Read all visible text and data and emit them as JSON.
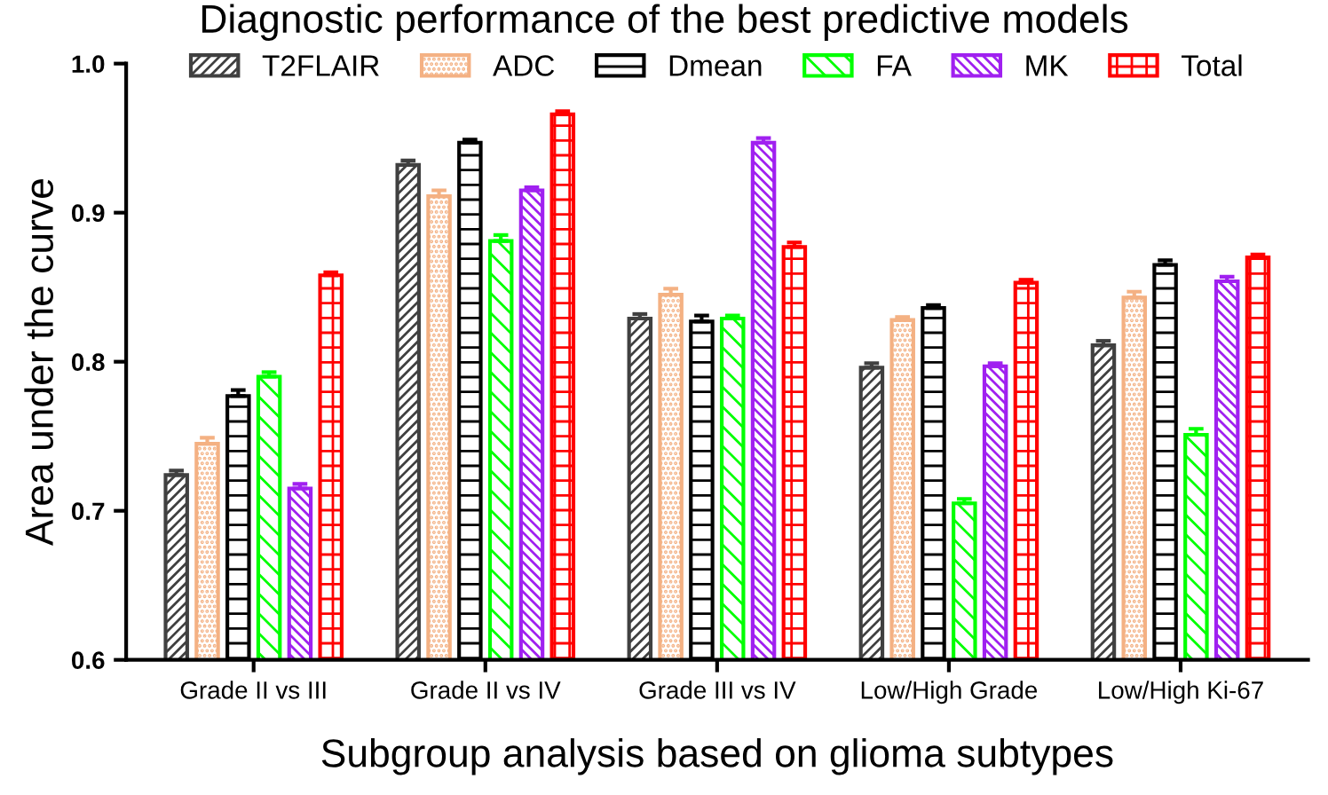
{
  "chart_data": {
    "type": "bar",
    "title": "Diagnostic performance of the best predictive models",
    "xlabel": "Subgroup analysis based on glioma subtypes",
    "ylabel": "Area under the curve",
    "categories": [
      "Grade II vs III",
      "Grade II vs IV",
      "Grade III vs IV",
      "Low/High Grade",
      "Low/High Ki-67"
    ],
    "series": [
      {
        "name": "T2FLAIR",
        "color": "#404040",
        "values": [
          0.724,
          0.932,
          0.829,
          0.796,
          0.811
        ],
        "errors": [
          0.003,
          0.003,
          0.003,
          0.003,
          0.003
        ]
      },
      {
        "name": "ADC",
        "color": "#f4b183",
        "values": [
          0.745,
          0.911,
          0.845,
          0.828,
          0.843
        ],
        "errors": [
          0.004,
          0.004,
          0.004,
          0.002,
          0.004
        ]
      },
      {
        "name": "Dmean",
        "color": "#000000",
        "values": [
          0.777,
          0.947,
          0.827,
          0.836,
          0.865
        ],
        "errors": [
          0.004,
          0.002,
          0.004,
          0.002,
          0.003
        ]
      },
      {
        "name": "FA",
        "color": "#00ff00",
        "values": [
          0.79,
          0.881,
          0.829,
          0.705,
          0.751
        ],
        "errors": [
          0.003,
          0.004,
          0.002,
          0.003,
          0.004
        ]
      },
      {
        "name": "MK",
        "color": "#a020f0",
        "values": [
          0.715,
          0.915,
          0.947,
          0.797,
          0.854
        ],
        "errors": [
          0.003,
          0.002,
          0.003,
          0.002,
          0.003
        ]
      },
      {
        "name": "Total",
        "color": "#ff0000",
        "values": [
          0.858,
          0.966,
          0.877,
          0.853,
          0.87
        ],
        "errors": [
          0.002,
          0.002,
          0.003,
          0.002,
          0.002
        ]
      }
    ],
    "ylim": [
      0.6,
      1.0
    ],
    "yticks": [
      0.6,
      0.7,
      0.8,
      0.9,
      {
        "value": 1,
        "label": "1.0"
      }
    ],
    "grid": false,
    "legend": "top"
  }
}
